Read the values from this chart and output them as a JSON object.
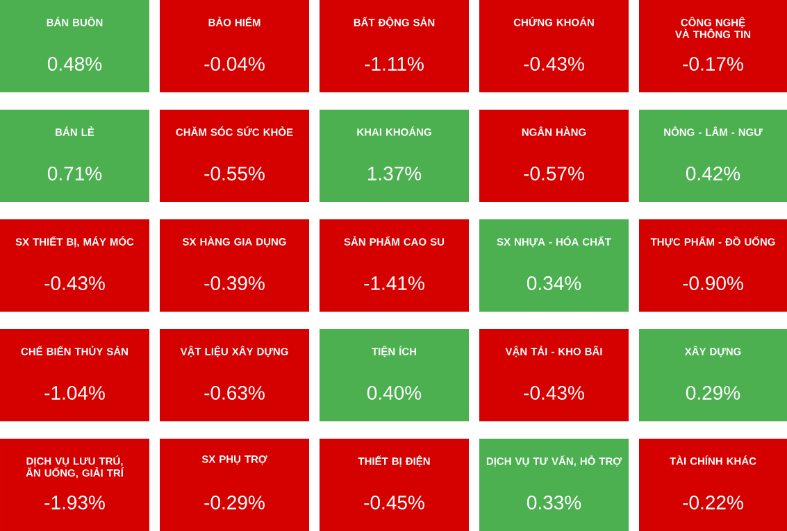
{
  "chart_data": {
    "type": "other",
    "categories": [
      "BÁN BUÔN",
      "BẢO HIỂM",
      "BẤT ĐỘNG SẢN",
      "CHỨNG KHOÁN",
      "CÔNG NGHỆ VÀ THÔNG TIN",
      "BÁN LẺ",
      "CHĂM SÓC SỨC KHỎE",
      "KHAI KHOÁNG",
      "NGÂN HÀNG",
      "NÔNG - LÂM - NGƯ",
      "SX THIẾT BỊ, MÁY MÓC",
      "SX HÀNG GIA DỤNG",
      "SẢN PHẨM CAO SU",
      "SX NHỰA - HÓA CHẤT",
      "THỰC PHẨM - ĐỒ UỐNG",
      "CHẾ BIẾN THỦY SẢN",
      "VẬT LIỆU XÂY DỰNG",
      "TIỆN ÍCH",
      "VẬN TẢI - KHO BÃI",
      "XÂY DỰNG",
      "DỊCH VỤ LƯU TRÚ, ĂN UỐNG, GIẢI TRÍ",
      "SX PHỤ TRỢ",
      "THIẾT BỊ ĐIỆN",
      "DỊCH VỤ TƯ VẤN, HỖ TRỢ",
      "TÀI CHÍNH KHÁC"
    ],
    "values": [
      0.48,
      -0.04,
      -1.11,
      -0.43,
      -0.17,
      0.71,
      -0.55,
      1.37,
      -0.57,
      0.42,
      -0.43,
      -0.39,
      -1.41,
      0.34,
      -0.9,
      -1.04,
      -0.63,
      0.4,
      -0.43,
      0.29,
      -1.93,
      -0.29,
      -0.45,
      0.33,
      -0.22
    ],
    "value_labels": [
      "0.48%",
      "-0.04%",
      "-1.11%",
      "-0.43%",
      "-0.17%",
      "0.71%",
      "-0.55%",
      "1.37%",
      "-0.57%",
      "0.42%",
      "-0.43%",
      "-0.39%",
      "-1.41%",
      "0.34%",
      "-0.90%",
      "-1.04%",
      "-0.63%",
      "0.40%",
      "-0.43%",
      "0.29%",
      "-1.93%",
      "-0.29%",
      "-0.45%",
      "0.33%",
      "-0.22%"
    ]
  }
}
